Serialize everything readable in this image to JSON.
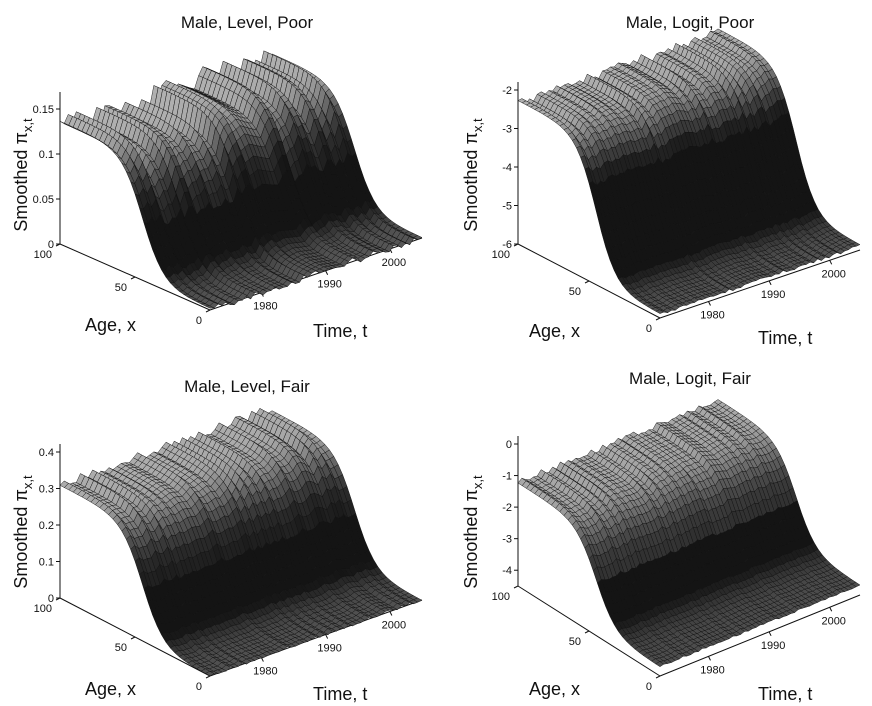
{
  "page": {
    "panels": [
      "p1",
      "p2",
      "p3",
      "p4"
    ]
  },
  "chart_data": [
    {
      "type": "surface",
      "title": "Male, Level, Poor",
      "zlabel": "Smoothed π",
      "zlabel_sub": "x,t",
      "xlabel": "Age, x",
      "ylabel": "Time, t",
      "z_ticks": [
        "0",
        "0.05",
        "0.1",
        "0.15"
      ],
      "z_range": [
        0,
        0.16
      ],
      "age_ticks": [
        "100",
        "50",
        "0"
      ],
      "age_range": [
        0,
        100
      ],
      "time_ticks": [
        "1980",
        "1990",
        "2000"
      ],
      "time_range": [
        1972,
        2005
      ],
      "profile": "level",
      "young_value": 0.0,
      "old_value": 0.13,
      "noise": 0.02
    },
    {
      "type": "surface",
      "title": "Male, Logit, Poor",
      "zlabel": "Smoothed π",
      "zlabel_sub": "x,t",
      "xlabel": "Age, x",
      "ylabel": "Time, t",
      "z_ticks": [
        "-6",
        "-5",
        "-4",
        "-3",
        "-2"
      ],
      "z_range": [
        -6,
        -2
      ],
      "age_ticks": [
        "100",
        "50",
        "0"
      ],
      "age_range": [
        0,
        100
      ],
      "time_ticks": [
        "1980",
        "1990",
        "2000"
      ],
      "time_range": [
        1972,
        2005
      ],
      "profile": "logit",
      "young_value": -5.9,
      "old_value": -2.3,
      "noise": 0.2
    },
    {
      "type": "surface",
      "title": "Male, Level, Fair",
      "zlabel": "Smoothed π",
      "zlabel_sub": "x,t",
      "xlabel": "Age, x",
      "ylabel": "Time, t",
      "z_ticks": [
        "0",
        "0.1",
        "0.2",
        "0.3",
        "0.4"
      ],
      "z_range": [
        0,
        0.4
      ],
      "age_ticks": [
        "100",
        "50",
        "0"
      ],
      "age_range": [
        0,
        100
      ],
      "time_ticks": [
        "1980",
        "1990",
        "2000"
      ],
      "time_range": [
        1972,
        2005
      ],
      "profile": "level",
      "young_value": 0.0,
      "old_value": 0.31,
      "noise": 0.02
    },
    {
      "type": "surface",
      "title": "Male, Logit, Fair",
      "zlabel": "Smoothed π",
      "zlabel_sub": "x,t",
      "xlabel": "Age, x",
      "ylabel": "Time, t",
      "z_ticks": [
        "-4",
        "-3",
        "-2",
        "-1",
        "0"
      ],
      "z_range": [
        -4.5,
        0
      ],
      "age_ticks": [
        "100",
        "50",
        "0"
      ],
      "age_range": [
        0,
        100
      ],
      "time_ticks": [
        "1980",
        "1990",
        "2000"
      ],
      "time_range": [
        1972,
        2005
      ],
      "profile": "logit",
      "young_value": -4.2,
      "old_value": -1.2,
      "noise": 0.15
    }
  ]
}
